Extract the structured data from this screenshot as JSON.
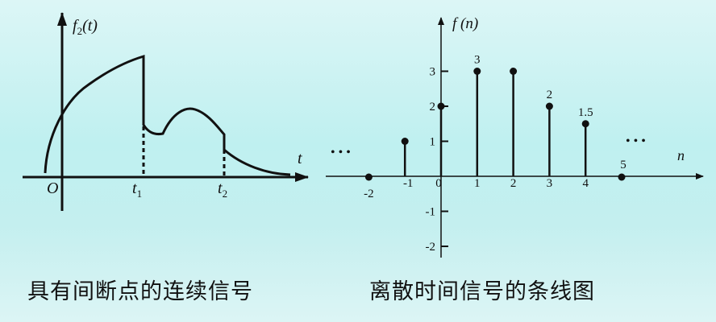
{
  "left_figure": {
    "y_label": "f2(t)",
    "y_label_main": "f",
    "y_label_sub": "2",
    "y_label_arg": "(t)",
    "x_label": "t",
    "origin_label": "O",
    "t1_label": "t",
    "t1_sub": "1",
    "t2_label": "t",
    "t2_sub": "2",
    "caption": "具有间断点的连续信号"
  },
  "right_figure": {
    "y_label": "f (n)",
    "x_label": "n",
    "ellipsis_left": "• • •",
    "ellipsis_right": "• • •",
    "caption": "离散时间信号的条线图",
    "chart_data": {
      "type": "stem",
      "x": [
        -2,
        -1,
        0,
        1,
        2,
        3,
        4,
        5
      ],
      "values": [
        0,
        1,
        2,
        3,
        3,
        2,
        1.5,
        0
      ],
      "x_tick_labels": [
        "-2",
        "-1",
        "0",
        "1",
        "2",
        "3",
        "4"
      ],
      "y_tick_labels": [
        "3",
        "2",
        "1",
        "-1",
        "-2"
      ],
      "y_ticks": [
        3,
        2,
        1,
        -1,
        -2
      ],
      "point_labels": [
        {
          "x": 1,
          "text": "3"
        },
        {
          "x": 3,
          "text": "2"
        },
        {
          "x": 4,
          "text": "1.5"
        },
        {
          "x": 5,
          "text": "5"
        }
      ],
      "xlabel": "n",
      "ylabel": "f (n)"
    }
  }
}
